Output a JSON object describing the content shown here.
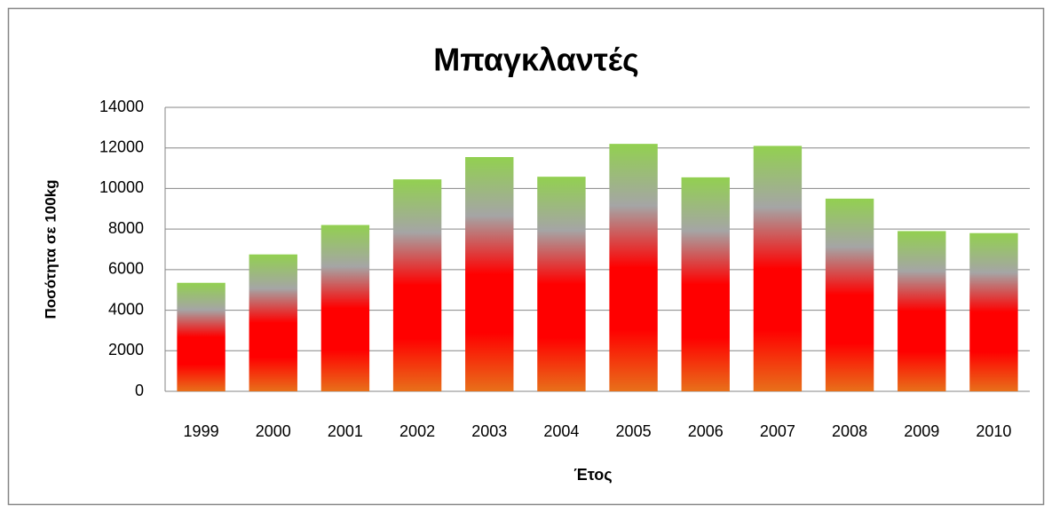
{
  "chart_data": {
    "type": "bar",
    "title": "Μπαγκλαντές",
    "x_label": "Έτος",
    "y_label": "Ποσότητα σε 100kg",
    "categories": [
      "1999",
      "2000",
      "2001",
      "2002",
      "2003",
      "2004",
      "2005",
      "2006",
      "2007",
      "2008",
      "2009",
      "2010"
    ],
    "values": [
      5350,
      6750,
      8200,
      10450,
      11550,
      10580,
      12200,
      10550,
      12100,
      9500,
      7900,
      7800
    ],
    "colors": [
      "#e8701a",
      "#ff0000",
      "#ff0000",
      "#a5a5a5",
      "#92d050"
    ],
    "ylim": [
      0,
      14000
    ],
    "yticks": [
      0,
      2000,
      4000,
      6000,
      8000,
      10000,
      12000,
      14000
    ],
    "grid": true
  }
}
